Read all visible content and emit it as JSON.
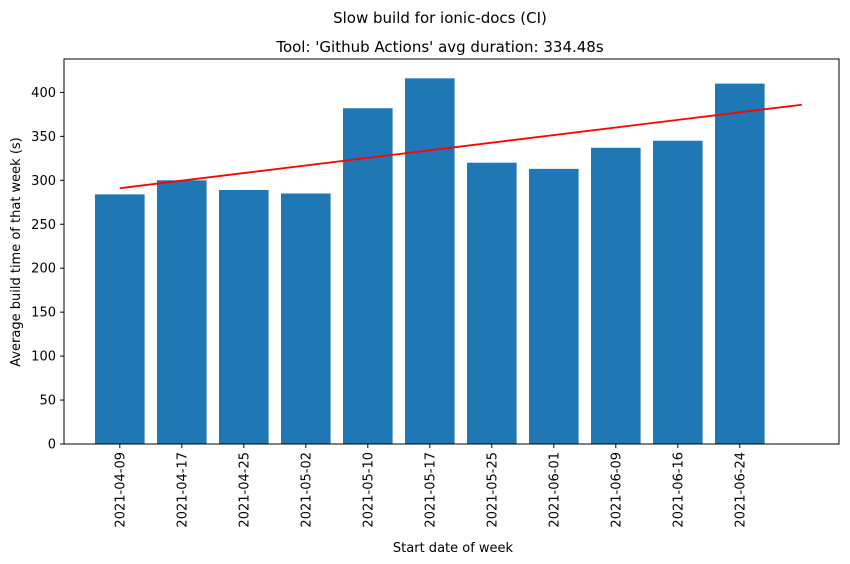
{
  "chart_data": {
    "type": "bar",
    "title": "Slow build for ionic-docs (CI)",
    "subtitle": "Tool: 'Github Actions' avg duration: 334.48s",
    "xlabel": "Start date of week",
    "ylabel": "Average build time of that week (s)",
    "categories": [
      "2021-04-09",
      "2021-04-17",
      "2021-04-25",
      "2021-05-02",
      "2021-05-10",
      "2021-05-17",
      "2021-05-25",
      "2021-06-01",
      "2021-06-09",
      "2021-06-16",
      "2021-06-24"
    ],
    "values": [
      284,
      300,
      289,
      285,
      382,
      416,
      320,
      313,
      337,
      345,
      410
    ],
    "ylim": [
      0,
      438
    ],
    "yticks": [
      0,
      50,
      100,
      150,
      200,
      250,
      300,
      350,
      400
    ],
    "trend_line": {
      "start": 291,
      "end": 386
    },
    "bar_color": "#1f77b4",
    "trend_color": "#ff0000",
    "grid": false
  }
}
